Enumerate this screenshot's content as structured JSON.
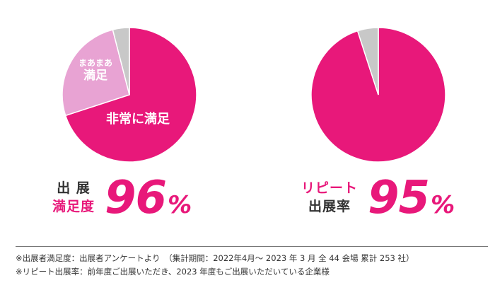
{
  "colors": {
    "primary": "#e8187a",
    "secondary": "#e8a3d3",
    "other": "#c8c8c8",
    "text_dark": "#333333",
    "text_accent": "#e8187a"
  },
  "chart_data": [
    {
      "type": "pie",
      "slices": [
        {
          "label_lines": [
            "非常に満足"
          ],
          "value": 70,
          "color": "#e8187a"
        },
        {
          "label_lines": [
            "まあまあ",
            "満足"
          ],
          "value": 26,
          "color": "#e8a3d3"
        },
        {
          "label_lines": [],
          "value": 4,
          "color": "#c8c8c8"
        }
      ],
      "summary": {
        "label_lines": [
          {
            "text": "出 展",
            "color": "#333333"
          },
          {
            "text": "満足度",
            "color": "#e8187a"
          }
        ],
        "value": "96",
        "unit": "%",
        "color": "#e8187a"
      }
    },
    {
      "type": "pie",
      "slices": [
        {
          "label_lines": [],
          "value": 95,
          "color": "#e8187a"
        },
        {
          "label_lines": [],
          "value": 5,
          "color": "#c8c8c8"
        }
      ],
      "summary": {
        "label_lines": [
          {
            "text": "リピート",
            "color": "#e8187a"
          },
          {
            "text": "出展率",
            "color": "#333333"
          }
        ],
        "value": "95",
        "unit": "%",
        "color": "#e8187a"
      }
    }
  ],
  "footnotes": [
    "※出展者満足度：出展者アンケートより　（集計期間：2022年4月～ 2023 年 3 月 全 44 会場  累計 253 社）",
    "※リピート出展率：前年度ご出展いただき、2023 年度もご出展いただいている企業様"
  ]
}
